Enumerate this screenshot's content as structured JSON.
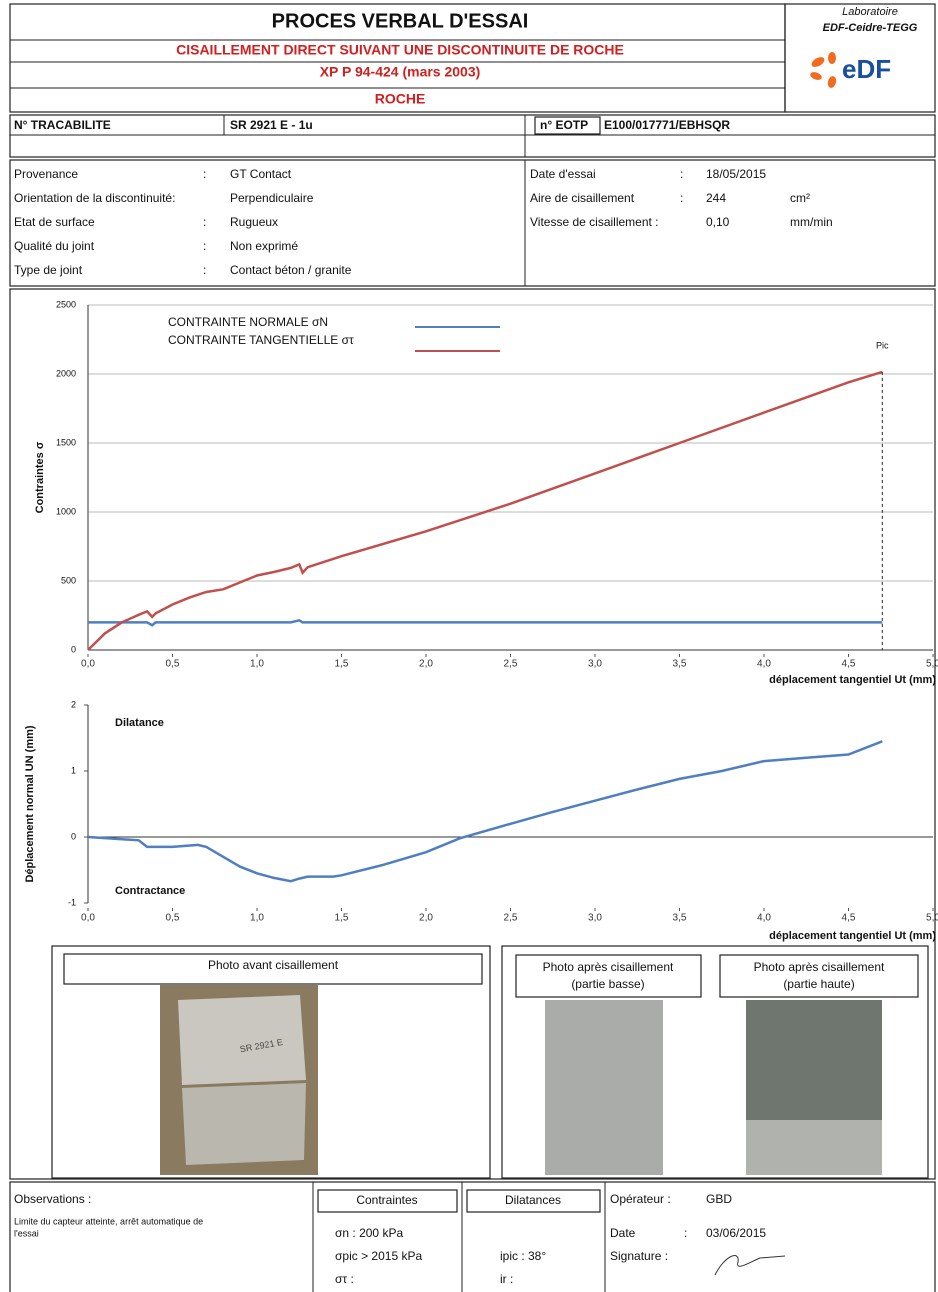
{
  "separator": ":",
  "header": {
    "title": "PROCES VERBAL D'ESSAI",
    "subtitle": "CISAILLEMENT DIRECT SUIVANT UNE DISCONTINUITE DE ROCHE",
    "standard": "XP P 94-424 (mars 2003)",
    "material": "ROCHE",
    "lab": "Laboratoire",
    "lab_name": "EDF-Ceidre-TEGG",
    "logo": "eDF"
  },
  "ids": {
    "tracabilite_label": "N° TRACABILITE",
    "tracabilite": "SR 2921 E - 1u",
    "eotp_label": "n° EOTP",
    "eotp": "E100/017771/EBHSQR"
  },
  "info_left": [
    {
      "label": "Provenance",
      "separator": ":",
      "value": "GT Contact"
    },
    {
      "label": "Orientation de la discontinuité:",
      "value": "Perpendiculaire"
    },
    {
      "label": "Etat de surface",
      "separator": ":",
      "value": "Rugueux"
    },
    {
      "label": "Qualité du joint",
      "separator": ":",
      "value": "Non exprimé"
    },
    {
      "label": "Type de joint",
      "separator": ":",
      "value": "Contact béton / granite"
    }
  ],
  "info_right": [
    {
      "label": "Date d'essai",
      "separator": ":",
      "value": "18/05/2015"
    },
    {
      "label": "Aire de cisaillement",
      "separator": ":",
      "value": "244",
      "unit": "cm²"
    },
    {
      "label": "Vitesse de cisaillement :",
      "value": "0,10",
      "unit": "mm/min"
    }
  ],
  "chart_data": [
    {
      "type": "line",
      "ylabel": "Contraintes σ",
      "xlabel": "déplacement tangentiel Ut (mm)",
      "annotation": "Pic",
      "x": [
        0,
        0.1,
        0.2,
        0.3,
        0.35,
        0.38,
        0.4,
        0.5,
        0.6,
        0.7,
        0.8,
        0.9,
        1.0,
        1.1,
        1.2,
        1.25,
        1.27,
        1.3,
        1.5,
        2.0,
        2.5,
        3.0,
        3.5,
        4.0,
        4.5,
        4.7
      ],
      "series": [
        {
          "name": "CONTRAINTE NORMALE σN",
          "color": "#4f7fc0",
          "values": [
            200,
            200,
            200,
            200,
            200,
            180,
            200,
            200,
            200,
            200,
            200,
            200,
            200,
            200,
            200,
            215,
            200,
            200,
            200,
            200,
            200,
            200,
            200,
            200,
            200,
            200
          ]
        },
        {
          "name": "CONTRAINTE TANGENTIELLE στ",
          "color": "#c0504d",
          "values": [
            0,
            120,
            200,
            255,
            280,
            240,
            265,
            330,
            380,
            420,
            440,
            490,
            540,
            565,
            595,
            620,
            560,
            600,
            680,
            860,
            1060,
            1280,
            1500,
            1720,
            1940,
            2015
          ]
        }
      ],
      "xlim": [
        0,
        5
      ],
      "ylim": [
        0,
        2500
      ],
      "xticks": [
        {
          "value": 0,
          "label": "0,0"
        },
        {
          "value": 0.5,
          "label": "0,5"
        },
        {
          "value": 1,
          "label": "1,0"
        },
        {
          "value": 1.5,
          "label": "1,5"
        },
        {
          "value": 2,
          "label": "2,0"
        },
        {
          "value": 2.5,
          "label": "2,5"
        },
        {
          "value": 3,
          "label": "3,0"
        },
        {
          "value": 3.5,
          "label": "3,5"
        },
        {
          "value": 4,
          "label": "4,0"
        },
        {
          "value": 4.5,
          "label": "4,5"
        },
        {
          "value": 5,
          "label": "5,0"
        }
      ],
      "yticks": [
        0,
        500,
        1000,
        1500,
        2000,
        2500
      ],
      "grid": true
    },
    {
      "type": "line",
      "ylabel": "Déplacement normal UN (mm)",
      "xlabel": "déplacement tangentiel Ut (mm)",
      "annotations": [
        "Dilatance",
        "Contractance"
      ],
      "x": [
        0,
        0.3,
        0.35,
        0.5,
        0.65,
        0.7,
        0.8,
        0.9,
        1.0,
        1.1,
        1.2,
        1.25,
        1.3,
        1.45,
        1.5,
        1.75,
        2.0,
        2.2,
        2.5,
        2.75,
        3.0,
        3.25,
        3.5,
        3.75,
        4.0,
        4.25,
        4.5,
        4.7
      ],
      "series": [
        {
          "color": "#4f7fc0",
          "values": [
            0,
            -0.05,
            -0.15,
            -0.15,
            -0.12,
            -0.15,
            -0.3,
            -0.45,
            -0.55,
            -0.62,
            -0.67,
            -0.63,
            -0.6,
            -0.6,
            -0.58,
            -0.42,
            -0.23,
            -0.02,
            0.2,
            0.38,
            0.55,
            0.72,
            0.88,
            1.0,
            1.15,
            1.2,
            1.25,
            1.45
          ]
        }
      ],
      "xlim": [
        0,
        5
      ],
      "ylim": [
        -1,
        2
      ],
      "xticks": [
        {
          "value": 0,
          "label": "0,0"
        },
        {
          "value": 0.5,
          "label": "0,5"
        },
        {
          "value": 1,
          "label": "1,0"
        },
        {
          "value": 1.5,
          "label": "1,5"
        },
        {
          "value": 2,
          "label": "2,0"
        },
        {
          "value": 2.5,
          "label": "2,5"
        },
        {
          "value": 3,
          "label": "3,0"
        },
        {
          "value": 3.5,
          "label": "3,5"
        },
        {
          "value": 4,
          "label": "4,0"
        },
        {
          "value": 4.5,
          "label": "4,5"
        },
        {
          "value": 5,
          "label": "5,0"
        }
      ],
      "yticks": [
        -1,
        0,
        1,
        2
      ],
      "grid": false
    }
  ],
  "photos": {
    "before": "Photo avant cisaillement",
    "after_low": [
      "Photo après cisaillement",
      "(partie basse)"
    ],
    "after_high": [
      "Photo après cisaillement",
      "(partie haute)"
    ]
  },
  "footer": {
    "observations_label": "Observations :",
    "observations": [
      "Limite du capteur atteinte, arrêt automatique de",
      "l'essai"
    ],
    "stresses_label": "Contraintes",
    "stresses": [
      "σn : 200 kPa",
      "σpic > 2015 kPa",
      "στ :"
    ],
    "dilatances_label": "Dilatances",
    "dilatances": [
      "ipic : 38°",
      "ir :"
    ],
    "operator_label": "Opérateur :",
    "operator": "GBD",
    "date_label": "Date",
    "date": "03/06/2015",
    "signature_label": "Signature :"
  }
}
